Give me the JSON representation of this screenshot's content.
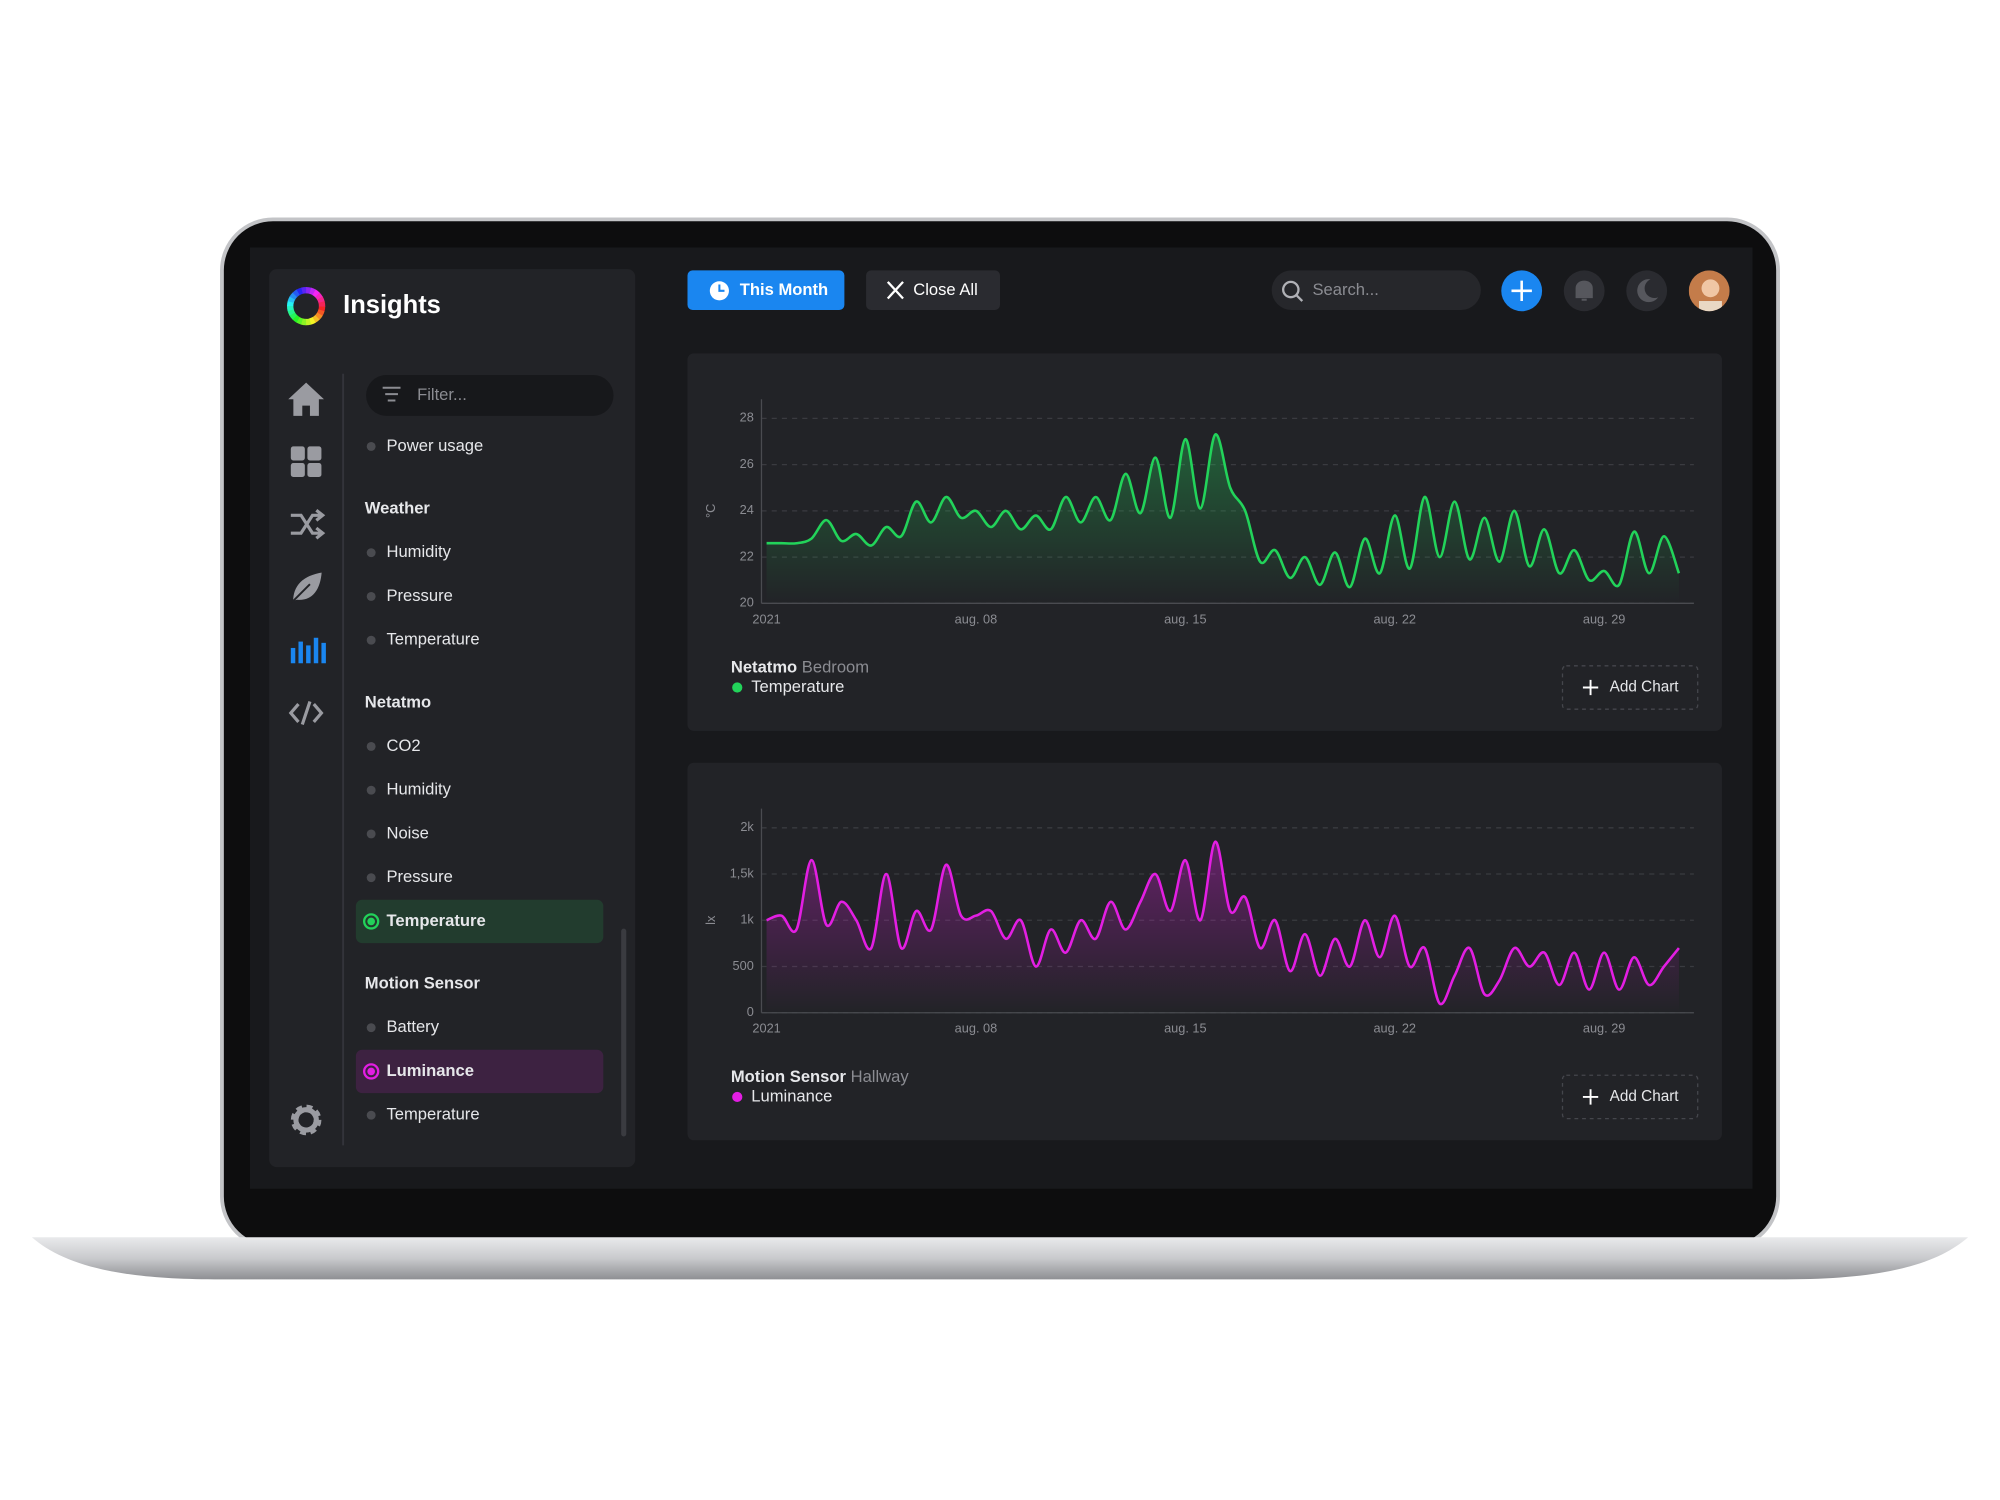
{
  "sidebar": {
    "app_title": "Insights",
    "filter_placeholder": "Filter...",
    "groups": [
      {
        "items": [
          "Power usage"
        ]
      },
      {
        "title": "Weather",
        "items": [
          "Humidity",
          "Pressure",
          "Temperature"
        ]
      },
      {
        "title": "Netatmo",
        "items": [
          "CO2",
          "Humidity",
          "Noise",
          "Pressure",
          "Temperature"
        ],
        "active": {
          "index": 4,
          "color": "#22d35a"
        }
      },
      {
        "title": "Motion Sensor",
        "items": [
          "Battery",
          "Luminance",
          "Temperature"
        ],
        "active": {
          "index": 1,
          "color": "#e31ee3"
        }
      }
    ]
  },
  "topbar": {
    "buttons": [
      "This Month",
      "Close All"
    ],
    "search_placeholder": "Search..."
  },
  "chart_data": [
    {
      "type": "line",
      "source": "Netatmo",
      "room": "Bedroom",
      "ylabel": "°C",
      "button": "Add Chart",
      "grid": true,
      "x": [
        1,
        1.5,
        2,
        2.5,
        3,
        3.5,
        4,
        4.5,
        5,
        5.5,
        6,
        6.5,
        7,
        7.5,
        8,
        8.5,
        9,
        9.5,
        10,
        10.5,
        11,
        11.5,
        12,
        12.5,
        13,
        13.5,
        14,
        14.5,
        15,
        15.5,
        16,
        16.5,
        17,
        17.5,
        18,
        18.5,
        19,
        19.5,
        20,
        20.5,
        21,
        21.5,
        22,
        22.5,
        23,
        23.5,
        24,
        24.5,
        25,
        25.5,
        26,
        26.5,
        27,
        27.5,
        28,
        28.5,
        29,
        29.5,
        30,
        30.5,
        31,
        31.5
      ],
      "series": [
        {
          "name": "Temperature",
          "color": "#22d35a",
          "values": [
            22.6,
            22.6,
            22.6,
            22.8,
            23.6,
            22.7,
            23.0,
            22.5,
            23.3,
            22.9,
            24.4,
            23.5,
            24.6,
            23.7,
            24.0,
            23.3,
            24.0,
            23.2,
            23.8,
            23.2,
            24.6,
            23.5,
            24.6,
            23.6,
            25.6,
            23.9,
            26.3,
            23.7,
            27.1,
            24.1,
            27.3,
            25.0,
            24.0,
            21.8,
            22.3,
            21.1,
            22.0,
            20.8,
            22.2,
            20.7,
            22.8,
            21.3,
            23.8,
            21.5,
            24.6,
            22.0,
            24.4,
            21.9,
            23.7,
            21.8,
            24.0,
            21.6,
            23.2,
            21.3,
            22.3,
            21.0,
            21.4,
            20.8,
            23.1,
            21.3,
            22.9,
            21.3
          ]
        }
      ],
      "xlim": [
        1,
        32
      ],
      "xticks": [
        {
          "value": 1,
          "label": "2021"
        },
        {
          "value": 8,
          "label": "aug. 08"
        },
        {
          "value": 15,
          "label": "aug. 15"
        },
        {
          "value": 22,
          "label": "aug. 22"
        },
        {
          "value": 29,
          "label": "aug. 29"
        }
      ],
      "ylim": [
        20,
        28
      ],
      "yticks": [
        20,
        22,
        24,
        26,
        28
      ]
    },
    {
      "type": "line",
      "source": "Motion Sensor",
      "room": "Hallway",
      "ylabel": "lx",
      "button": "Add Chart",
      "grid": true,
      "x": [
        1,
        1.5,
        2,
        2.5,
        3,
        3.5,
        4,
        4.5,
        5,
        5.5,
        6,
        6.5,
        7,
        7.5,
        8,
        8.5,
        9,
        9.5,
        10,
        10.5,
        11,
        11.5,
        12,
        12.5,
        13,
        13.5,
        14,
        14.5,
        15,
        15.5,
        16,
        16.5,
        17,
        17.5,
        18,
        18.5,
        19,
        19.5,
        20,
        20.5,
        21,
        21.5,
        22,
        22.5,
        23,
        23.5,
        24,
        24.5,
        25,
        25.5,
        26,
        26.5,
        27,
        27.5,
        28,
        28.5,
        29,
        29.5,
        30,
        30.5,
        31,
        31.5
      ],
      "series": [
        {
          "name": "Luminance",
          "color": "#e31ee3",
          "values": [
            1000,
            1050,
            900,
            1650,
            950,
            1200,
            1000,
            700,
            1500,
            700,
            1100,
            900,
            1600,
            1050,
            1050,
            1100,
            800,
            1000,
            500,
            900,
            650,
            1000,
            800,
            1200,
            900,
            1200,
            1500,
            1100,
            1650,
            1000,
            1850,
            1100,
            1250,
            700,
            1000,
            450,
            850,
            400,
            800,
            500,
            1000,
            600,
            1050,
            500,
            700,
            100,
            400,
            700,
            200,
            350,
            700,
            500,
            650,
            300,
            650,
            250,
            650,
            250,
            600,
            300,
            500,
            700
          ]
        }
      ],
      "xlim": [
        1,
        32
      ],
      "xticks": [
        {
          "value": 1,
          "label": "2021"
        },
        {
          "value": 8,
          "label": "aug. 08"
        },
        {
          "value": 15,
          "label": "aug. 15"
        },
        {
          "value": 22,
          "label": "aug. 22"
        },
        {
          "value": 29,
          "label": "aug. 29"
        }
      ],
      "ylim": [
        0,
        2000
      ],
      "yticks": [
        0,
        500,
        {
          "value": 1000,
          "label": "1k"
        },
        {
          "value": 1500,
          "label": "1,5k"
        },
        {
          "value": 2000,
          "label": "2k"
        }
      ]
    }
  ]
}
